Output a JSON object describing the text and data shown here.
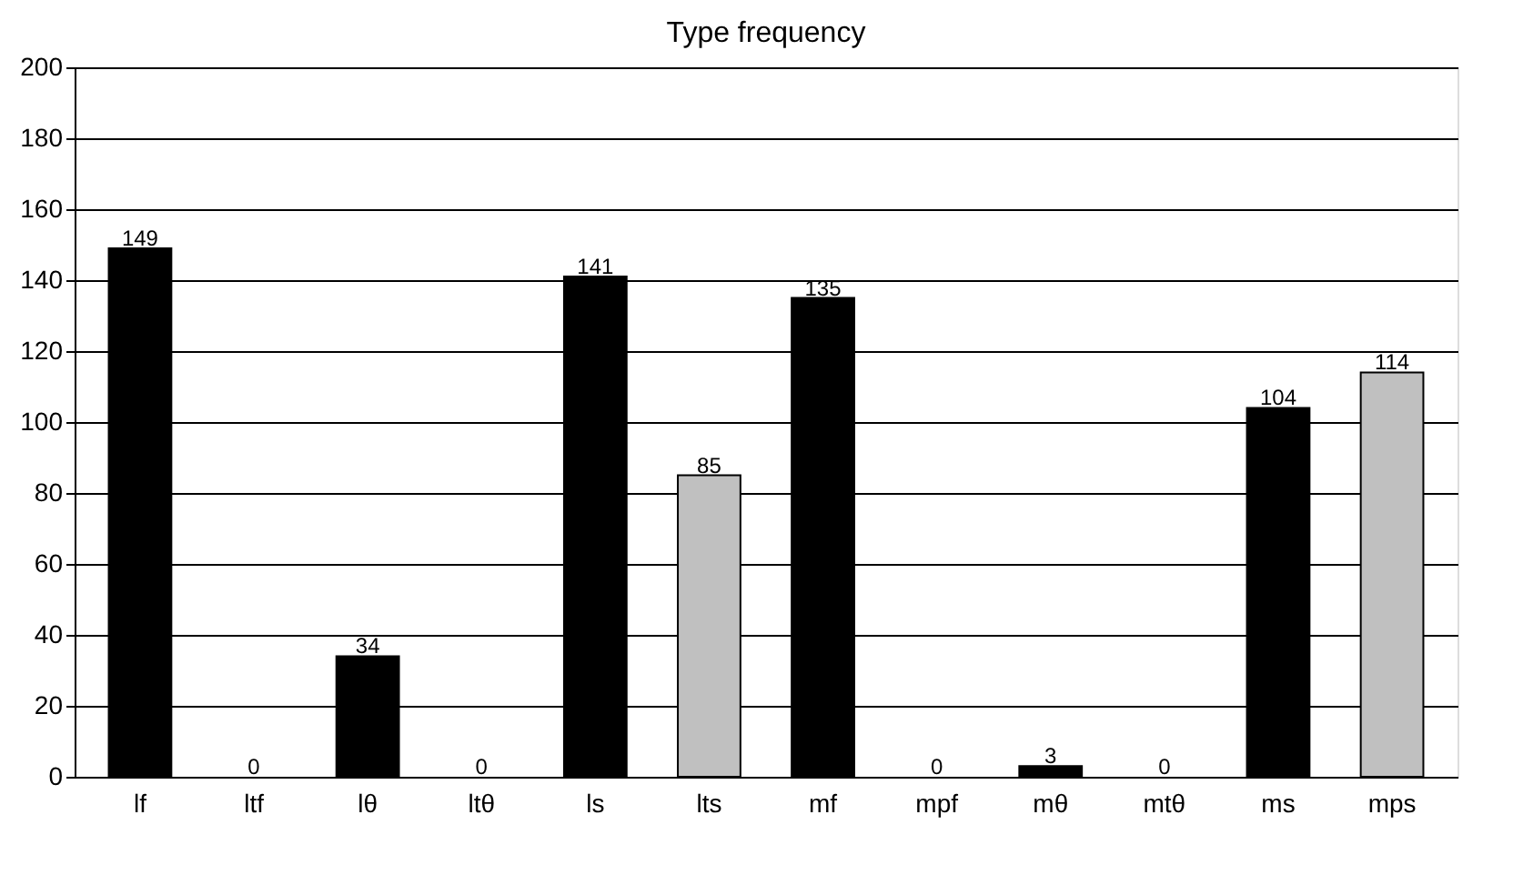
{
  "chart_data": {
    "type": "bar",
    "title": "Type frequency",
    "categories": [
      "lf",
      "ltf",
      "lθ",
      "ltθ",
      "ls",
      "lts",
      "mf",
      "mpf",
      "mθ",
      "mtθ",
      "ms",
      "mps"
    ],
    "values": [
      149,
      0,
      34,
      0,
      141,
      85,
      135,
      0,
      3,
      0,
      104,
      114
    ],
    "colors": [
      "#000000",
      "#c0c0c0",
      "#000000",
      "#c0c0c0",
      "#000000",
      "#c0c0c0",
      "#000000",
      "#c0c0c0",
      "#000000",
      "#c0c0c0",
      "#000000",
      "#c0c0c0"
    ],
    "ylim": [
      0,
      200
    ],
    "yticks": [
      0,
      20,
      40,
      60,
      80,
      100,
      120,
      140,
      160,
      180,
      200
    ],
    "grid": "y",
    "data_labels": true
  }
}
